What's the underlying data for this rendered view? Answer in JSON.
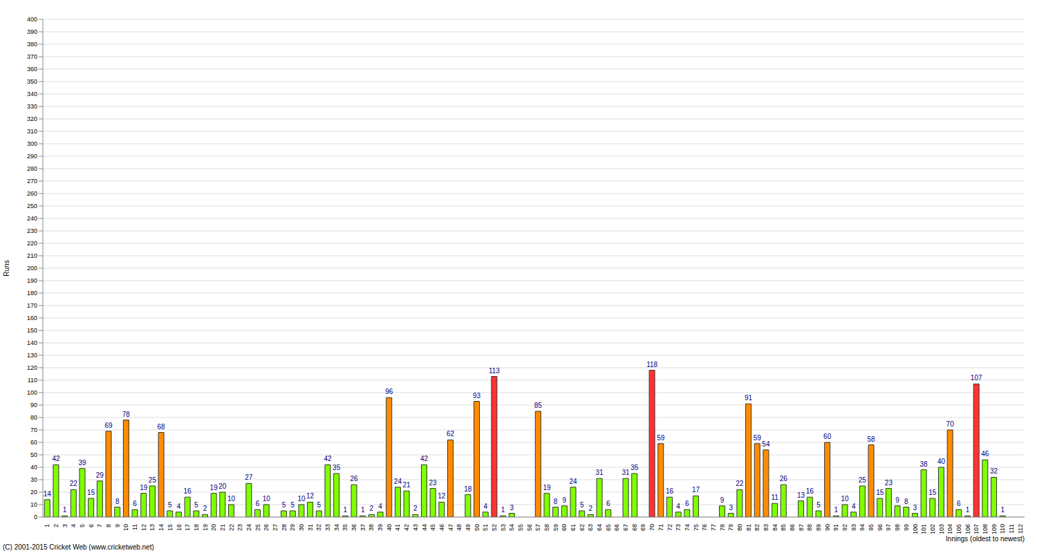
{
  "chart_data": {
    "type": "bar",
    "ylabel": "Runs",
    "xlabel": "Innings (oldest to newest)",
    "annotations": [
      "(C) 2001-2015 Cricket Web (www.cricketweb.net)"
    ],
    "categories": [
      "1",
      "2",
      "3",
      "4",
      "5",
      "6",
      "7",
      "8",
      "9",
      "10",
      "11",
      "12",
      "13",
      "14",
      "15",
      "16",
      "17",
      "18",
      "19",
      "20",
      "21",
      "22",
      "23",
      "24",
      "25",
      "26",
      "27",
      "28",
      "29",
      "30",
      "31",
      "32",
      "33",
      "34",
      "35",
      "36",
      "37",
      "38",
      "39",
      "40",
      "41",
      "42",
      "43",
      "44",
      "45",
      "46",
      "47",
      "48",
      "49",
      "50",
      "51",
      "52",
      "53",
      "54",
      "55",
      "56",
      "57",
      "58",
      "59",
      "60",
      "61",
      "62",
      "63",
      "64",
      "65",
      "66",
      "67",
      "68",
      "69",
      "70",
      "71",
      "72",
      "73",
      "74",
      "75",
      "76",
      "77",
      "78",
      "79",
      "80",
      "81",
      "82",
      "83",
      "84",
      "85",
      "86",
      "87",
      "88",
      "89",
      "90",
      "91",
      "92",
      "93",
      "94",
      "95",
      "96",
      "97",
      "98",
      "99",
      "100",
      "101",
      "102",
      "103",
      "104",
      "105",
      "106",
      "107",
      "108",
      "109",
      "110",
      "111",
      "112"
    ],
    "values": [
      14,
      42,
      1,
      22,
      39,
      15,
      29,
      69,
      8,
      78,
      6,
      19,
      25,
      68,
      5,
      4,
      16,
      5,
      2,
      19,
      20,
      10,
      0,
      27,
      6,
      10,
      0,
      5,
      5,
      10,
      12,
      5,
      42,
      35,
      1,
      26,
      1,
      2,
      4,
      96,
      24,
      21,
      2,
      42,
      23,
      12,
      62,
      0,
      18,
      93,
      4,
      113,
      1,
      3,
      0,
      0,
      85,
      19,
      8,
      9,
      24,
      5,
      2,
      31,
      6,
      0,
      31,
      35,
      0,
      118,
      59,
      16,
      4,
      6,
      17,
      0,
      0,
      9,
      3,
      22,
      91,
      59,
      54,
      11,
      26,
      0,
      13,
      16,
      5,
      60,
      1,
      10,
      4,
      25,
      58,
      15,
      23,
      9,
      8,
      3,
      38,
      15,
      40,
      70,
      6,
      1,
      107,
      46,
      32,
      1,
      0,
      0
    ],
    "colors": [
      "#80ff00",
      "#80ff00",
      "#80ff00",
      "#80ff00",
      "#80ff00",
      "#80ff00",
      "#80ff00",
      "#ff8c00",
      "#80ff00",
      "#ff8c00",
      "#80ff00",
      "#80ff00",
      "#80ff00",
      "#ff8c00",
      "#80ff00",
      "#80ff00",
      "#80ff00",
      "#80ff00",
      "#80ff00",
      "#80ff00",
      "#80ff00",
      "#80ff00",
      "#80ff00",
      "#80ff00",
      "#80ff00",
      "#80ff00",
      "#80ff00",
      "#80ff00",
      "#80ff00",
      "#80ff00",
      "#80ff00",
      "#80ff00",
      "#80ff00",
      "#80ff00",
      "#80ff00",
      "#80ff00",
      "#80ff00",
      "#80ff00",
      "#80ff00",
      "#ff8c00",
      "#80ff00",
      "#80ff00",
      "#80ff00",
      "#80ff00",
      "#80ff00",
      "#80ff00",
      "#ff8c00",
      "#80ff00",
      "#80ff00",
      "#ff8c00",
      "#80ff00",
      "#ff3333",
      "#80ff00",
      "#80ff00",
      "#80ff00",
      "#80ff00",
      "#ff8c00",
      "#80ff00",
      "#80ff00",
      "#80ff00",
      "#80ff00",
      "#80ff00",
      "#80ff00",
      "#80ff00",
      "#80ff00",
      "#80ff00",
      "#80ff00",
      "#80ff00",
      "#80ff00",
      "#ff3333",
      "#ff8c00",
      "#80ff00",
      "#80ff00",
      "#80ff00",
      "#80ff00",
      "#80ff00",
      "#80ff00",
      "#80ff00",
      "#80ff00",
      "#80ff00",
      "#ff8c00",
      "#ff8c00",
      "#ff8c00",
      "#80ff00",
      "#80ff00",
      "#80ff00",
      "#80ff00",
      "#80ff00",
      "#80ff00",
      "#ff8c00",
      "#80ff00",
      "#80ff00",
      "#80ff00",
      "#80ff00",
      "#ff8c00",
      "#80ff00",
      "#80ff00",
      "#80ff00",
      "#80ff00",
      "#80ff00",
      "#80ff00",
      "#80ff00",
      "#80ff00",
      "#ff8c00",
      "#80ff00",
      "#80ff00",
      "#ff3333",
      "#80ff00",
      "#80ff00",
      "#80ff00",
      "#80ff00",
      "#80ff00"
    ],
    "ylim": [
      0,
      400
    ],
    "yticks": [
      0,
      10,
      20,
      30,
      40,
      50,
      60,
      70,
      80,
      90,
      100,
      110,
      120,
      130,
      140,
      150,
      160,
      170,
      180,
      190,
      200,
      210,
      220,
      230,
      240,
      250,
      260,
      270,
      280,
      290,
      300,
      310,
      320,
      330,
      340,
      350,
      360,
      370,
      380,
      390,
      400
    ],
    "grid": true,
    "data_labels": true
  }
}
